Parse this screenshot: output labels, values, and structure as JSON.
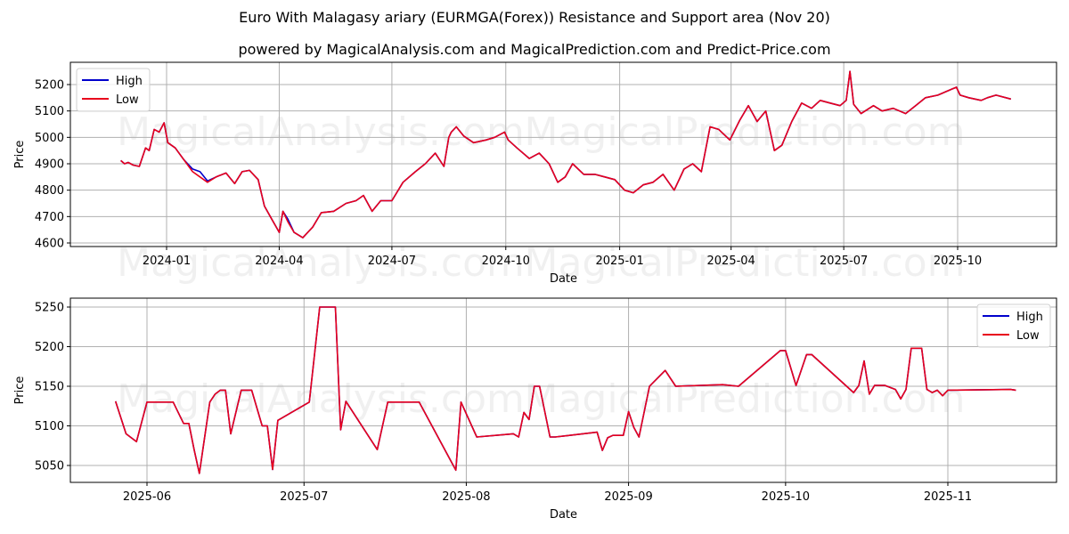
{
  "header": {
    "title": "Euro With Malagasy ariary (EURMGA(Forex)) Resistance and Support area (Nov 20)",
    "subtitle": "powered by MagicalAnalysis.com and MagicalPrediction.com and Predict-Price.com"
  },
  "watermarks": [
    "MagicalAnalysis.com",
    "MagicalPrediction.com"
  ],
  "colors": {
    "high": "#0000cc",
    "low": "#e8001c",
    "grid": "#b0b0b0"
  },
  "chart_data": [
    {
      "type": "line",
      "title": "",
      "xlabel": "Date",
      "ylabel": "Price",
      "ylim": [
        4590,
        5270
      ],
      "yticks": [
        4600,
        4700,
        4800,
        4900,
        5000,
        5100,
        5200
      ],
      "xticks": [
        "2024-01",
        "2024-04",
        "2024-07",
        "2024-10",
        "2025-01",
        "2025-04",
        "2025-07",
        "2025-10"
      ],
      "grid": true,
      "legend": {
        "position": "upper left",
        "entries": [
          "High",
          "Low"
        ]
      },
      "x": [
        "2023-11-25",
        "2023-11-28",
        "2023-12-01",
        "2023-12-05",
        "2023-12-10",
        "2023-12-15",
        "2023-12-18",
        "2023-12-22",
        "2023-12-26",
        "2023-12-30",
        "2024-01-02",
        "2024-01-08",
        "2024-01-15",
        "2024-01-22",
        "2024-01-28",
        "2024-02-03",
        "2024-02-10",
        "2024-02-18",
        "2024-02-25",
        "2024-03-02",
        "2024-03-08",
        "2024-03-15",
        "2024-03-20",
        "2024-03-26",
        "2024-04-01",
        "2024-04-04",
        "2024-04-08",
        "2024-04-13",
        "2024-04-20",
        "2024-04-28",
        "2024-05-05",
        "2024-05-15",
        "2024-05-25",
        "2024-06-02",
        "2024-06-08",
        "2024-06-15",
        "2024-06-22",
        "2024-07-01",
        "2024-07-10",
        "2024-07-20",
        "2024-07-28",
        "2024-08-05",
        "2024-08-12",
        "2024-08-16",
        "2024-08-18",
        "2024-08-22",
        "2024-08-28",
        "2024-09-05",
        "2024-09-15",
        "2024-09-22",
        "2024-09-30",
        "2024-10-03",
        "2024-10-10",
        "2024-10-20",
        "2024-10-28",
        "2024-11-05",
        "2024-11-12",
        "2024-11-18",
        "2024-11-24",
        "2024-12-03",
        "2024-12-12",
        "2024-12-20",
        "2024-12-28",
        "2025-01-05",
        "2025-01-12",
        "2025-01-20",
        "2025-01-28",
        "2025-02-05",
        "2025-02-14",
        "2025-02-22",
        "2025-03-01",
        "2025-03-08",
        "2025-03-15",
        "2025-03-22",
        "2025-03-31",
        "2025-04-08",
        "2025-04-15",
        "2025-04-22",
        "2025-04-29",
        "2025-05-06",
        "2025-05-12",
        "2025-05-20",
        "2025-05-28",
        "2025-06-05",
        "2025-06-12",
        "2025-06-20",
        "2025-06-28",
        "2025-07-03",
        "2025-07-06",
        "2025-07-09",
        "2025-07-15",
        "2025-07-25",
        "2025-08-01",
        "2025-08-10",
        "2025-08-20",
        "2025-08-28",
        "2025-09-05",
        "2025-09-15",
        "2025-09-25",
        "2025-09-30",
        "2025-10-03",
        "2025-10-10",
        "2025-10-20",
        "2025-10-25",
        "2025-11-01",
        "2025-11-13"
      ],
      "series": [
        {
          "name": "High",
          "values": [
            4912,
            4900,
            4905,
            4895,
            4890,
            4960,
            4950,
            5030,
            5020,
            5055,
            4980,
            4960,
            4915,
            4880,
            4870,
            4835,
            4850,
            4865,
            4825,
            4870,
            4875,
            4840,
            4740,
            4690,
            4640,
            4720,
            4690,
            4640,
            4620,
            4660,
            4715,
            4720,
            4750,
            4760,
            4780,
            4720,
            4760,
            4760,
            4830,
            4870,
            4900,
            4940,
            4890,
            5000,
            5020,
            5040,
            5005,
            4980,
            4990,
            5000,
            5020,
            4990,
            4960,
            4920,
            4940,
            4900,
            4830,
            4850,
            4900,
            4860,
            4860,
            4850,
            4840,
            4800,
            4790,
            4820,
            4830,
            4860,
            4800,
            4880,
            4900,
            4870,
            5040,
            5030,
            4990,
            5065,
            5120,
            5060,
            5100,
            4950,
            4970,
            5060,
            5130,
            5110,
            5140,
            5130,
            5120,
            5140,
            5250,
            5125,
            5090,
            5120,
            5100,
            5110,
            5090,
            5120,
            5150,
            5160,
            5180,
            5190,
            5160,
            5150,
            5140,
            5150,
            5160,
            5145
          ]
        },
        {
          "name": "Low",
          "values": [
            4912,
            4900,
            4905,
            4895,
            4890,
            4960,
            4950,
            5030,
            5020,
            5055,
            4980,
            4960,
            4915,
            4870,
            4850,
            4830,
            4850,
            4865,
            4825,
            4870,
            4875,
            4840,
            4740,
            4690,
            4640,
            4720,
            4680,
            4640,
            4620,
            4660,
            4715,
            4720,
            4750,
            4760,
            4780,
            4720,
            4760,
            4760,
            4830,
            4870,
            4900,
            4940,
            4890,
            5000,
            5020,
            5040,
            5005,
            4980,
            4990,
            5000,
            5020,
            4990,
            4960,
            4920,
            4940,
            4900,
            4830,
            4850,
            4900,
            4860,
            4860,
            4850,
            4840,
            4800,
            4790,
            4820,
            4830,
            4860,
            4800,
            4880,
            4900,
            4870,
            5040,
            5030,
            4990,
            5065,
            5120,
            5060,
            5100,
            4950,
            4970,
            5060,
            5130,
            5110,
            5140,
            5130,
            5120,
            5140,
            5250,
            5125,
            5090,
            5120,
            5100,
            5110,
            5090,
            5120,
            5150,
            5160,
            5180,
            5190,
            5160,
            5150,
            5140,
            5150,
            5160,
            5145
          ]
        }
      ]
    },
    {
      "type": "line",
      "title": "",
      "xlabel": "Date",
      "ylabel": "Price",
      "ylim": [
        5028,
        5262
      ],
      "yticks": [
        5050,
        5100,
        5150,
        5200,
        5250
      ],
      "xticks": [
        "2025-06",
        "2025-07",
        "2025-08",
        "2025-09",
        "2025-10",
        "2025-11"
      ],
      "grid": true,
      "legend": {
        "position": "upper right",
        "entries": [
          "High",
          "Low"
        ]
      },
      "x": [
        "2025-05-26",
        "2025-05-28",
        "2025-05-29",
        "2025-05-30",
        "2025-06-01",
        "2025-06-06",
        "2025-06-08",
        "2025-06-09",
        "2025-06-10",
        "2025-06-11",
        "2025-06-13",
        "2025-06-14",
        "2025-06-15",
        "2025-06-16",
        "2025-06-17",
        "2025-06-19",
        "2025-06-21",
        "2025-06-23",
        "2025-06-24",
        "2025-06-25",
        "2025-06-26",
        "2025-07-02",
        "2025-07-04",
        "2025-07-07",
        "2025-07-07",
        "2025-07-08",
        "2025-07-09",
        "2025-07-15",
        "2025-07-17",
        "2025-07-23",
        "2025-07-30",
        "2025-07-31",
        "2025-08-03",
        "2025-08-10",
        "2025-08-11",
        "2025-08-12",
        "2025-08-13",
        "2025-08-14",
        "2025-08-15",
        "2025-08-17",
        "2025-08-18",
        "2025-08-26",
        "2025-08-27",
        "2025-08-28",
        "2025-08-29",
        "2025-08-31",
        "2025-09-01",
        "2025-09-02",
        "2025-09-03",
        "2025-09-05",
        "2025-09-08",
        "2025-09-10",
        "2025-09-19",
        "2025-09-22",
        "2025-09-30",
        "2025-10-01",
        "2025-10-03",
        "2025-10-05",
        "2025-10-06",
        "2025-10-14",
        "2025-10-15",
        "2025-10-16",
        "2025-10-17",
        "2025-10-18",
        "2025-10-20",
        "2025-10-22",
        "2025-10-23",
        "2025-10-24",
        "2025-10-25",
        "2025-10-27",
        "2025-10-28",
        "2025-10-29",
        "2025-10-30",
        "2025-10-31",
        "2025-11-01",
        "2025-11-13",
        "2025-11-14"
      ],
      "series": [
        {
          "name": "High",
          "values": [
            5131,
            5090,
            5085,
            5080,
            5130,
            5130,
            5103,
            5103,
            5070,
            5040,
            5130,
            5140,
            5145,
            5145,
            5090,
            5145,
            5145,
            5100,
            5100,
            5045,
            5107,
            5130,
            5250,
            5250,
            5250,
            5095,
            5131,
            5070,
            5130,
            5130,
            5044,
            5130,
            5086,
            5090,
            5086,
            5117,
            5108,
            5150,
            5150,
            5086,
            5086,
            5092,
            5069,
            5085,
            5088,
            5088,
            5118,
            5098,
            5086,
            5150,
            5170,
            5150,
            5152,
            5150,
            5195,
            5195,
            5151,
            5190,
            5190,
            5142,
            5151,
            5182,
            5140,
            5151,
            5151,
            5146,
            5134,
            5146,
            5198,
            5198,
            5146,
            5142,
            5145,
            5138,
            5145,
            5146,
            5145
          ]
        },
        {
          "name": "Low",
          "values": [
            5131,
            5090,
            5085,
            5080,
            5130,
            5130,
            5103,
            5103,
            5070,
            5040,
            5130,
            5140,
            5145,
            5145,
            5090,
            5145,
            5145,
            5100,
            5100,
            5045,
            5107,
            5130,
            5250,
            5250,
            5250,
            5095,
            5131,
            5070,
            5130,
            5130,
            5044,
            5130,
            5086,
            5090,
            5086,
            5117,
            5108,
            5150,
            5150,
            5086,
            5086,
            5092,
            5069,
            5085,
            5088,
            5088,
            5118,
            5098,
            5086,
            5150,
            5170,
            5150,
            5152,
            5150,
            5195,
            5195,
            5151,
            5190,
            5190,
            5142,
            5151,
            5182,
            5140,
            5151,
            5151,
            5146,
            5134,
            5146,
            5198,
            5198,
            5146,
            5142,
            5145,
            5138,
            5145,
            5146,
            5145
          ]
        }
      ]
    }
  ]
}
